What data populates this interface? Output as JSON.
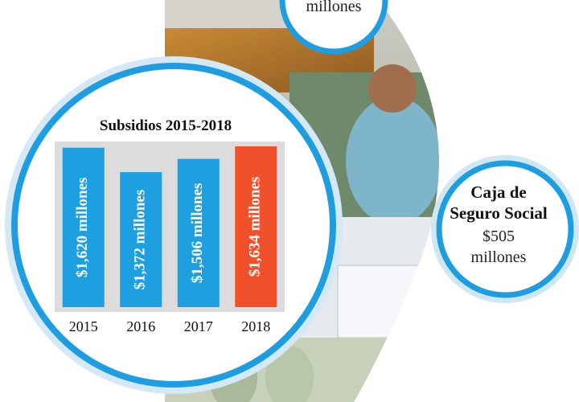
{
  "chart_data": {
    "type": "bar",
    "title": "Subsidios 2015-2018",
    "categories": [
      "2015",
      "2016",
      "2017",
      "2018"
    ],
    "values": [
      1620,
      1372,
      1506,
      1634
    ],
    "value_labels": [
      "$1,620 millones",
      "$1,372 millones",
      "$1,506 millones",
      "$1,634 millones"
    ],
    "colors": [
      "#1ea0e0",
      "#1ea0e0",
      "#1ea0e0",
      "#f0502a"
    ]
  },
  "top_circle": {
    "text": "millones"
  },
  "right_circle": {
    "title_lines": [
      "Caja de",
      "Seguro Social"
    ],
    "amount": "$505",
    "unit": "millones"
  }
}
